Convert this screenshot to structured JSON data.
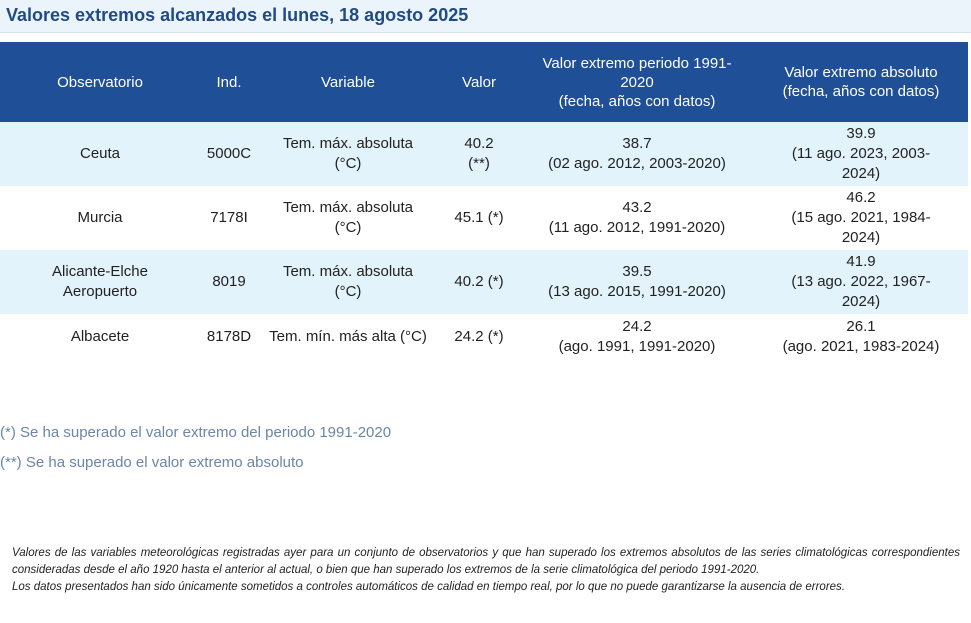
{
  "title": "Valores extremos alcanzados el lunes, 18 agosto 2025",
  "table": {
    "headers": [
      "Observatorio",
      "Ind.",
      "Variable",
      "Valor",
      "Valor extremo periodo 1991-2020\n(fecha, años con datos)",
      "Valor extremo absoluto\n(fecha, años con datos)"
    ],
    "rows": [
      [
        "Ceuta",
        "5000C",
        "Tem. máx. absoluta (°C)",
        "40.2 (**)",
        "38.7\n(02 ago. 2012, 2003-2020)",
        "39.9\n(11 ago. 2023, 2003-2024)"
      ],
      [
        "Murcia",
        "7178I",
        "Tem. máx. absoluta (°C)",
        "45.1 (*)",
        "43.2\n(11 ago. 2012, 1991-2020)",
        "46.2\n(15 ago. 2021, 1984-2024)"
      ],
      [
        "Alicante-Elche Aeropuerto",
        "8019",
        "Tem. máx. absoluta (°C)",
        "40.2 (*)",
        "39.5\n(13 ago. 2015, 1991-2020)",
        "41.9\n(13 ago. 2022, 1967-2024)"
      ],
      [
        "Albacete",
        "8178D",
        "Tem. mín. más alta (°C)",
        "24.2 (*)",
        "24.2\n(ago. 1991, 1991-2020)",
        "26.1\n(ago. 2021, 1983-2024)"
      ]
    ]
  },
  "notes": [
    "(*) Se ha superado el valor extremo del periodo 1991-2020",
    "(**) Se ha superado el valor extremo absoluto"
  ],
  "footer": [
    "Valores de las variables meteorológicas registradas ayer para un conjunto de observatorios y que han superado los extremos absolutos de las series climatológicas correspondientes consideradas desde el año 1920 hasta el anterior al actual, o bien que han superado los extremos de la serie climatológica del periodo 1991-2020.",
    "Los datos presentados han sido únicamente sometidos a controles automáticos de calidad en tiempo real, por lo que no puede garantizarse la ausencia de errores."
  ],
  "colors": {
    "header_bg": "#1f4f97",
    "title_text": "#1f4a86",
    "alt_row_bg": "#e2f3fb",
    "note_text": "#6b86a6"
  }
}
